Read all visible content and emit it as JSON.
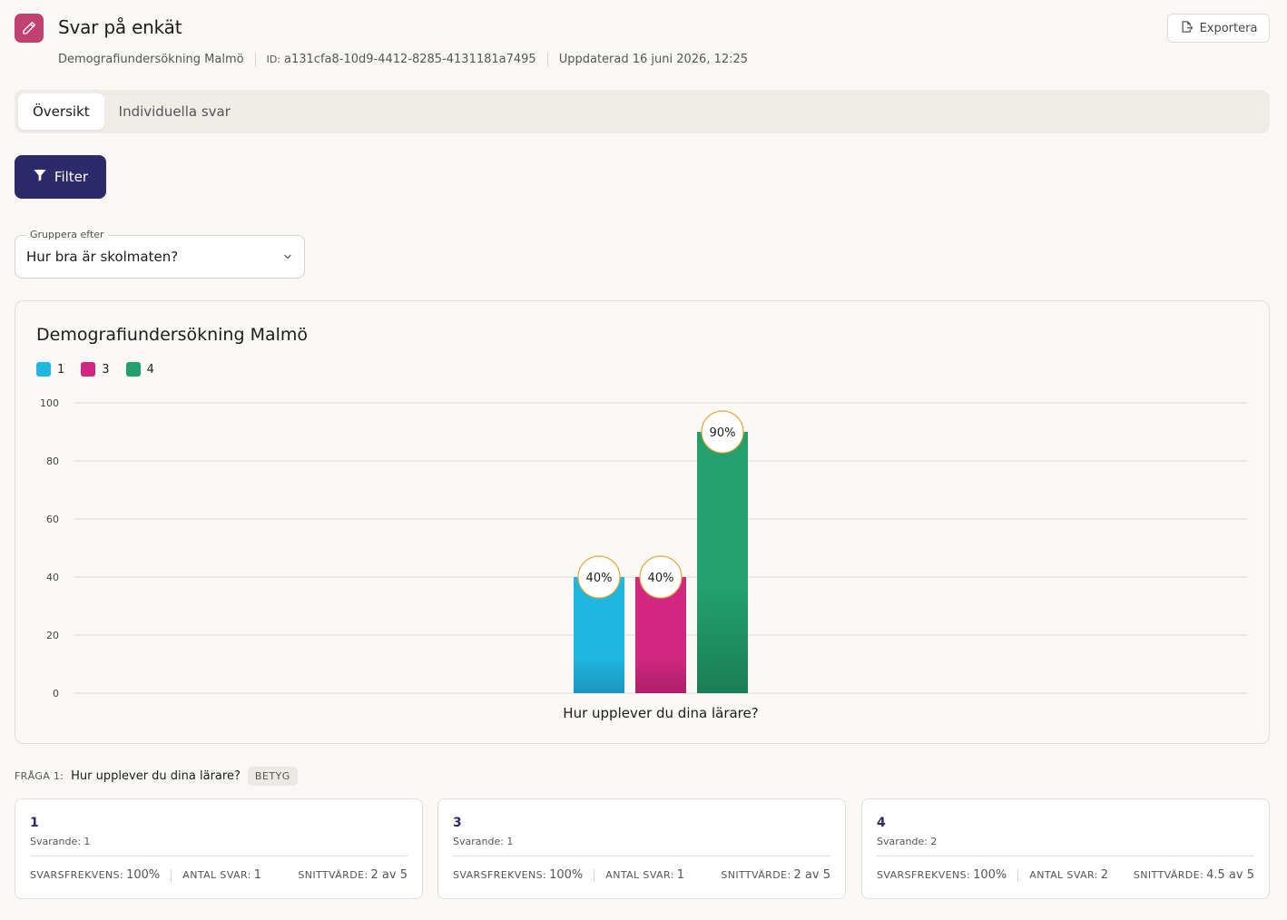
{
  "header": {
    "title": "Svar på enkät",
    "export_label": "Exportera",
    "survey_name": "Demografiundersökning Malmö",
    "id_label": "ID:",
    "id_value": "a131cfa8-10d9-4412-8285-4131181a7495",
    "updated": "Uppdaterad 16 juni 2026, 12:25"
  },
  "tabs": [
    {
      "label": "Översikt",
      "active": true
    },
    {
      "label": "Individuella svar",
      "active": false
    }
  ],
  "filter_label": "Filter",
  "group_by": {
    "label": "Gruppera efter",
    "value": "Hur bra är skolmaten?"
  },
  "chart_data": {
    "type": "bar",
    "title": "Demografiundersökning Malmö",
    "categories": [
      "Hur upplever du dina lärare?"
    ],
    "series": [
      {
        "name": "1",
        "values": [
          40
        ],
        "label": "40%",
        "color": "#1fb6e0"
      },
      {
        "name": "3",
        "values": [
          40
        ],
        "label": "40%",
        "color": "#d12780"
      },
      {
        "name": "4",
        "values": [
          90
        ],
        "label": "90%",
        "color": "#23a06e"
      }
    ],
    "yticks": [
      0,
      20,
      40,
      60,
      80,
      100
    ],
    "ylim": [
      0,
      100
    ],
    "grid": true,
    "legend_position": "top-left"
  },
  "question": {
    "prefix": "FRÅGA 1:",
    "text": "Hur upplever du dina lärare?",
    "badge": "BETYG"
  },
  "cards": [
    {
      "title": "1",
      "sub": "Svarande: 1",
      "k1": "SVARSFREKVENS:",
      "v1": "100%",
      "k2": "ANTAL SVAR:",
      "v2": "1",
      "k3": "SNITTVÄRDE:",
      "v3": "2 av 5"
    },
    {
      "title": "3",
      "sub": "Svarande: 1",
      "k1": "SVARSFREKVENS:",
      "v1": "100%",
      "k2": "ANTAL SVAR:",
      "v2": "1",
      "k3": "SNITTVÄRDE:",
      "v3": "2 av 5"
    },
    {
      "title": "4",
      "sub": "Svarande: 2",
      "k1": "SVARSFREKVENS:",
      "v1": "100%",
      "k2": "ANTAL SVAR:",
      "v2": "2",
      "k3": "SNITTVÄRDE:",
      "v3": "4.5 av 5"
    }
  ],
  "icons": {
    "app": "pencil-icon",
    "export": "export-icon",
    "filter": "filter-icon",
    "select": "chevron-down-icon"
  }
}
